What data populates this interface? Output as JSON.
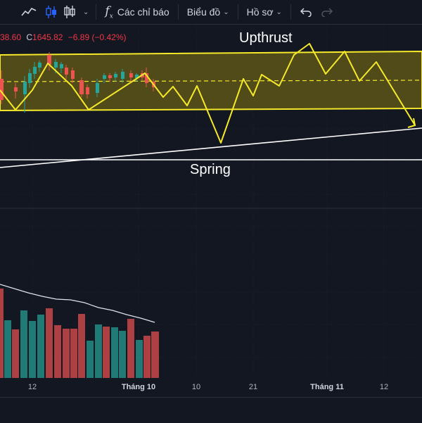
{
  "toolbar": {
    "indicators_label": "Các chỉ báo",
    "chart_menu_label": "Biểu đồ",
    "profile_menu_label": "Hồ sơ"
  },
  "ohlc": {
    "open_partial": "38.60",
    "close_label": "C",
    "close_value": "1645.82",
    "change": "−6.89 (−0.42%)"
  },
  "annotations": {
    "upthrust": "Upthrust",
    "spring": "Spring"
  },
  "time_axis": [
    "12",
    "Tháng 10",
    "10",
    "21",
    "Tháng 11",
    "12"
  ],
  "colors": {
    "background": "#131722",
    "up": "#26a69a",
    "down": "#ef5350",
    "zone_border": "#f5e92a",
    "zone_fill": "#5c5518",
    "line": "#ffffff"
  },
  "icons": [
    "line-chart-icon",
    "candles-icon",
    "bar-chart-icon",
    "function-icon",
    "undo-icon",
    "redo-icon"
  ]
}
